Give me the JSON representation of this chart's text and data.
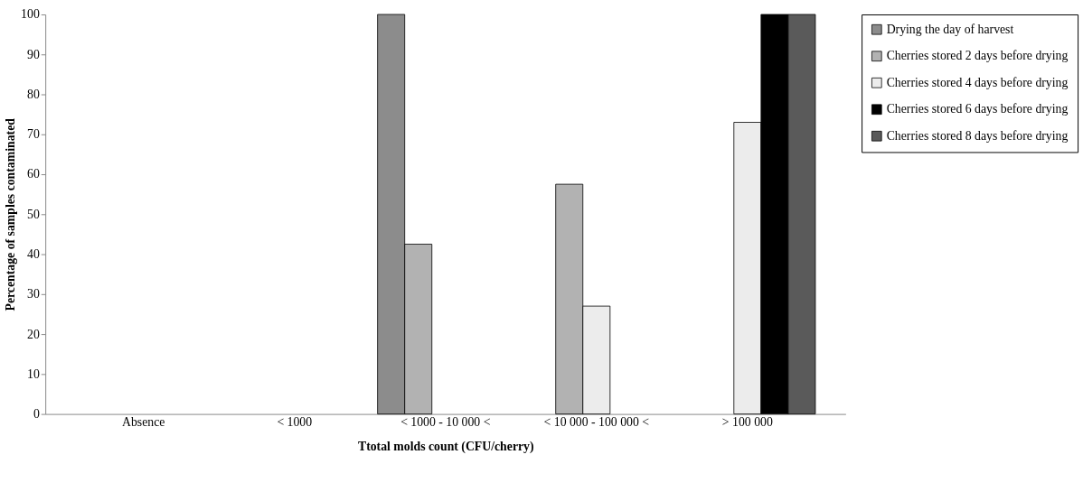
{
  "chart_data": {
    "type": "bar",
    "xlabel": "Ttotal molds count (CFU/cherry)",
    "ylabel": "Percentage of samples contaminated",
    "categories": [
      "Absence",
      "< 1000",
      "< 1000 - 10 000 <",
      "< 10 000 - 100 000 <",
      "> 100 000"
    ],
    "series": [
      {
        "name": "Drying the day of harvest",
        "color": "#8c8c8c",
        "values": [
          0,
          0,
          100,
          0,
          0
        ]
      },
      {
        "name": "Cherries stored 2 days before drying",
        "color": "#b2b2b2",
        "values": [
          0,
          0,
          42.5,
          57.5,
          0
        ]
      },
      {
        "name": "Cherries stored 4 days before drying",
        "color": "#ececec",
        "values": [
          0,
          0,
          0,
          27,
          73
        ]
      },
      {
        "name": "Cherries stored 6 days before drying",
        "color": "#000000",
        "values": [
          0,
          0,
          0,
          0,
          100
        ]
      },
      {
        "name": "Cherries stored 8 days before drying",
        "color": "#5a5a5a",
        "values": [
          0,
          0,
          0,
          0,
          100
        ]
      }
    ],
    "ylim": [
      0,
      100
    ],
    "yticks": [
      0,
      10,
      20,
      30,
      40,
      50,
      60,
      70,
      80,
      90,
      100
    ],
    "grid": false,
    "legend": "right"
  }
}
